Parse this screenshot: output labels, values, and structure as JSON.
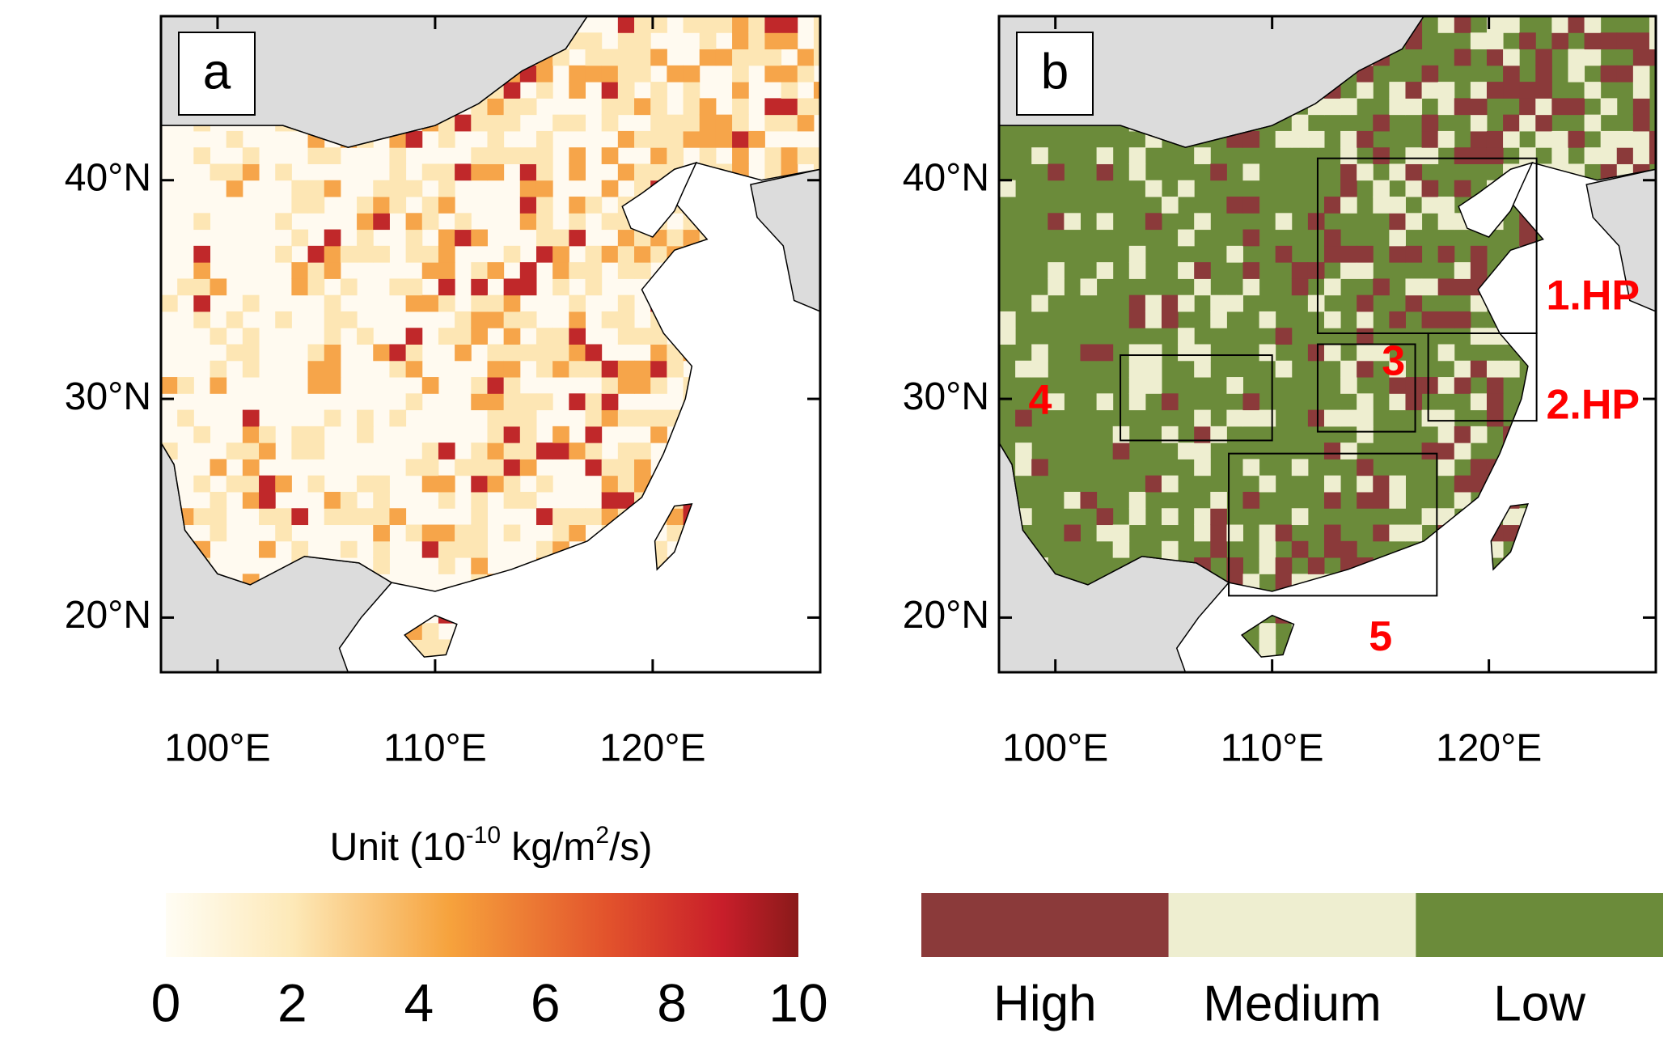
{
  "panels": [
    {
      "label": "a",
      "xlim": [
        97.4,
        127.7
      ],
      "ylim": [
        17.5,
        47.5
      ],
      "xticks": [
        {
          "value": 100,
          "label": "100°E"
        },
        {
          "value": 110,
          "label": "110°E"
        },
        {
          "value": 120,
          "label": "120°E"
        }
      ],
      "yticks": [
        {
          "value": 20,
          "label": "20°N"
        },
        {
          "value": 30,
          "label": "30°N"
        },
        {
          "value": 40,
          "label": "40°N"
        }
      ]
    },
    {
      "label": "b",
      "xlim": [
        97.4,
        127.7
      ],
      "ylim": [
        17.5,
        47.5
      ],
      "xticks": [
        {
          "value": 100,
          "label": "100°E"
        },
        {
          "value": 110,
          "label": "110°E"
        },
        {
          "value": 120,
          "label": "120°E"
        }
      ],
      "yticks": [
        {
          "value": 20,
          "label": "20°N"
        },
        {
          "value": 30,
          "label": "30°N"
        },
        {
          "value": 40,
          "label": "40°N"
        }
      ],
      "regions": [
        "1.HP",
        "2.HP",
        "3",
        "4",
        "5"
      ]
    }
  ],
  "colorbar": {
    "title": [
      "Unit (10",
      "-10",
      " kg/m",
      "2",
      "/s)"
    ],
    "range": [
      0,
      10
    ],
    "ticks": [
      0,
      2,
      4,
      6,
      8,
      10
    ]
  },
  "legend": [
    {
      "name": "High",
      "color": "#8b3a3a"
    },
    {
      "name": "Medium",
      "color": "#eeeed0"
    },
    {
      "name": "Low",
      "color": "#6b8b3a"
    }
  ]
}
